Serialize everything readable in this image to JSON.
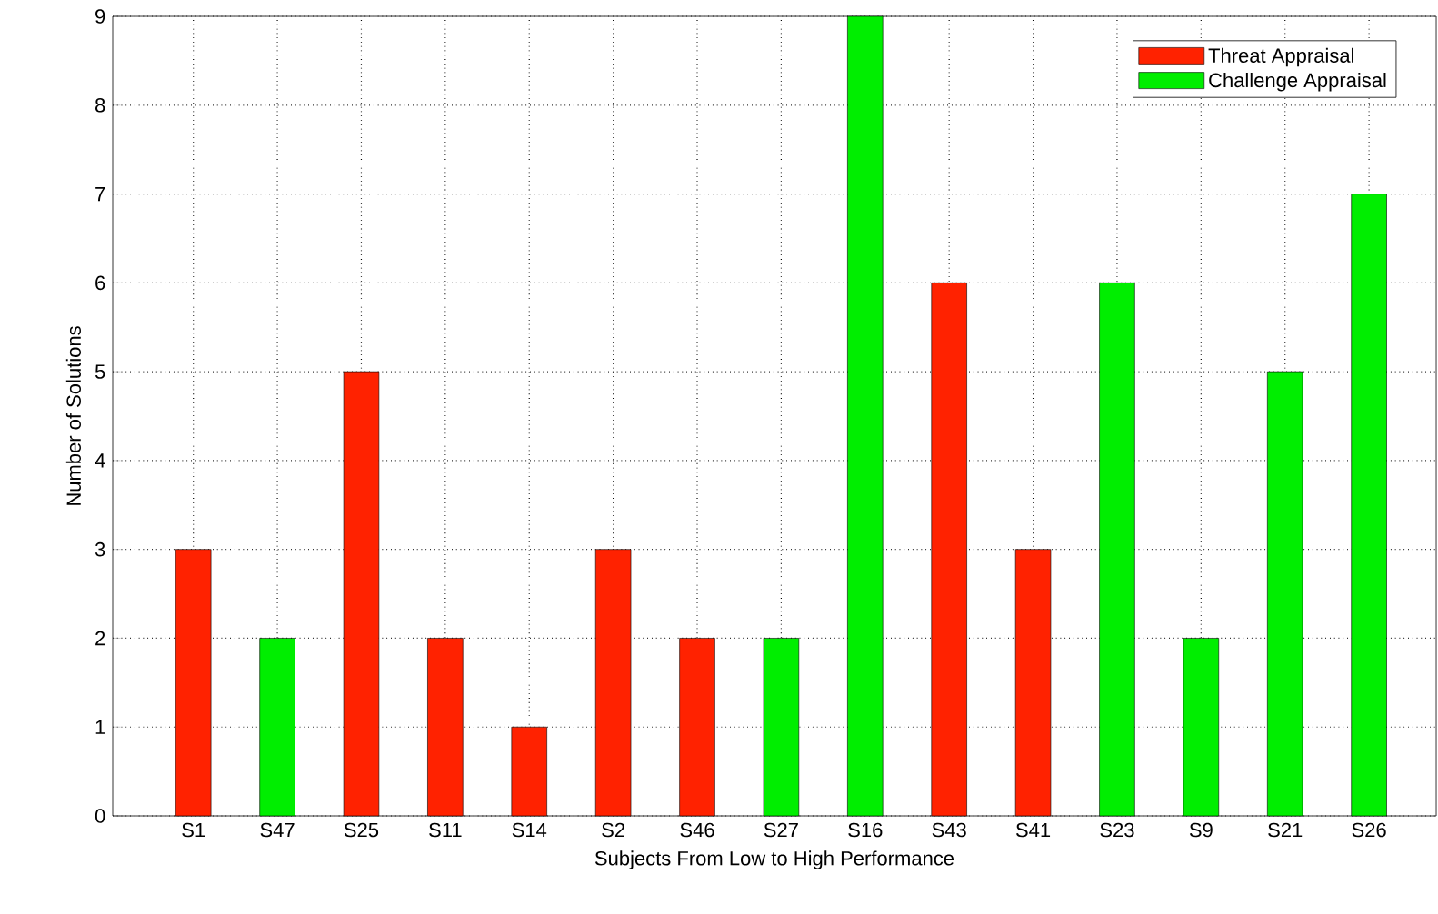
{
  "chart_data": {
    "type": "bar",
    "xlabel": "Subjects From Low to High Performance",
    "ylabel": "Number of Solutions",
    "categories": [
      "S1",
      "S47",
      "S25",
      "S11",
      "S14",
      "S2",
      "S46",
      "S27",
      "S16",
      "S43",
      "S41",
      "S23",
      "S9",
      "S21",
      "S26"
    ],
    "series": [
      {
        "name": "Threat Appraisal",
        "color": "#ff2200",
        "values": [
          3,
          null,
          5,
          2,
          1,
          3,
          2,
          null,
          null,
          6,
          3,
          null,
          null,
          null,
          null
        ]
      },
      {
        "name": "Challenge Appraisal",
        "color": "#00ee00",
        "values": [
          null,
          2,
          null,
          null,
          null,
          null,
          null,
          2,
          9,
          null,
          null,
          6,
          2,
          5,
          7
        ]
      }
    ],
    "ylim": [
      0,
      9
    ],
    "yticks": [
      0,
      1,
      2,
      3,
      4,
      5,
      6,
      7,
      8,
      9
    ],
    "grid": true,
    "legend": "top right"
  }
}
